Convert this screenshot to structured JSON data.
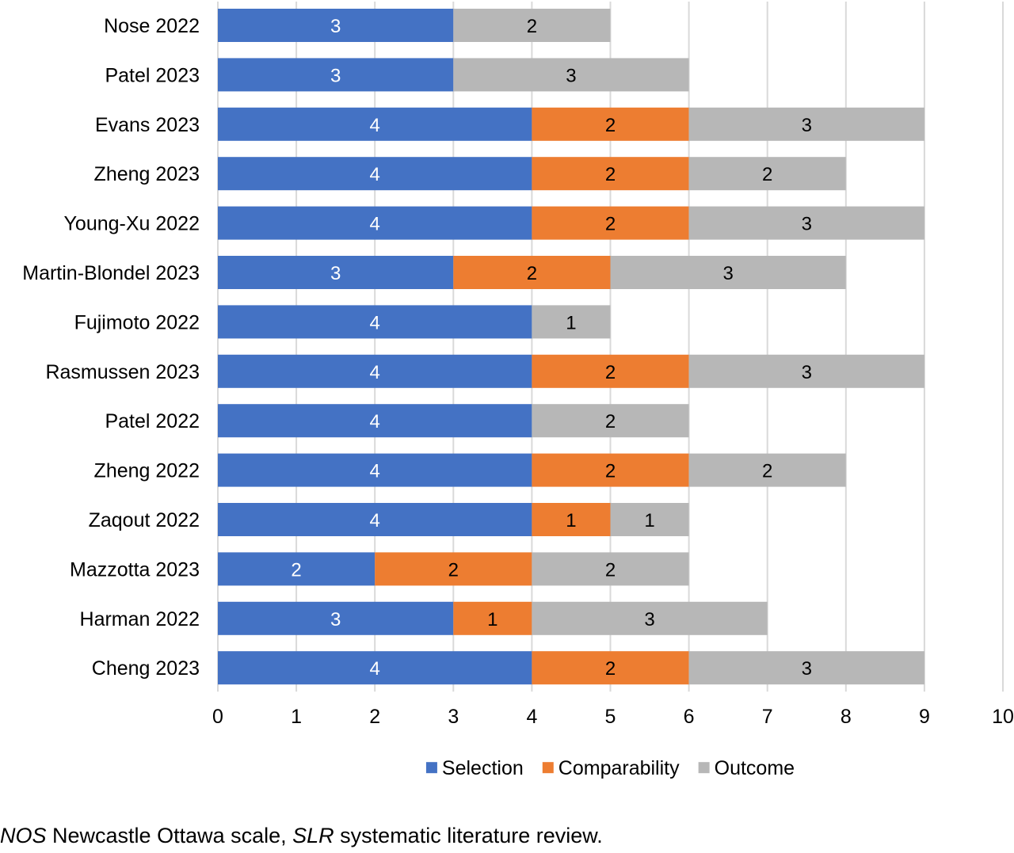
{
  "chart_data": {
    "type": "bar",
    "orientation": "horizontal",
    "stacked": true,
    "categories": [
      "Nose 2022",
      "Patel 2023",
      "Evans 2023",
      "Zheng 2023",
      "Young-Xu 2022",
      "Martin-Blondel 2023",
      "Fujimoto 2022",
      "Rasmussen 2023",
      "Patel 2022",
      "Zheng 2022",
      "Zaqout 2022",
      "Mazzotta 2023",
      "Harman 2022",
      "Cheng 2023"
    ],
    "series": [
      {
        "name": "Selection",
        "color": "#4472C4",
        "label_color": "#ffffff",
        "values": [
          3,
          3,
          4,
          4,
          4,
          3,
          4,
          4,
          4,
          4,
          4,
          2,
          3,
          4
        ]
      },
      {
        "name": "Comparability",
        "color": "#ED7D31",
        "label_color": "#000000",
        "values": [
          0,
          0,
          2,
          2,
          2,
          2,
          0,
          2,
          0,
          2,
          1,
          2,
          1,
          2
        ]
      },
      {
        "name": "Outcome",
        "color": "#B7B7B7",
        "label_color": "#000000",
        "values": [
          2,
          3,
          3,
          2,
          3,
          3,
          1,
          3,
          2,
          2,
          1,
          2,
          3,
          3
        ]
      }
    ],
    "xlim": [
      0,
      10
    ],
    "xticks": [
      0,
      1,
      2,
      3,
      4,
      5,
      6,
      7,
      8,
      9,
      10
    ],
    "grid": "vertical",
    "legend_position": "bottom",
    "title": "",
    "xlabel": "",
    "ylabel": ""
  },
  "footnote": {
    "abbr1": "NOS",
    "text1": " Newcastle Ottawa scale, ",
    "abbr2": "SLR",
    "text2": " systematic literature review."
  }
}
